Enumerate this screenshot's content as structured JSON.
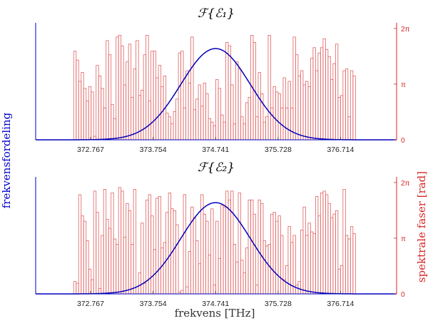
{
  "figure": {
    "ylabel_left": "frekvensfordeling",
    "ylabel_right": "spektrale faser [rad]",
    "xlabel": "frekvens [THz]"
  },
  "colors": {
    "distribution": "#0000bb",
    "phase": "#e06060",
    "axis_right": "#d62728"
  },
  "chart_data": [
    {
      "type": "bar",
      "title": "ℱ{ℰ₁}",
      "x_ticks": [
        "372.767",
        "373.754",
        "374.741",
        "375.728",
        "376.714"
      ],
      "x_tick_values": [
        372.767,
        373.754,
        374.741,
        375.728,
        376.714
      ],
      "xlim": [
        371.9,
        377.6
      ],
      "y_right_ticks": [
        "0",
        "π",
        "2π"
      ],
      "y_right_tick_values": [
        0,
        3.14159,
        6.28318
      ],
      "ylim_right": [
        0,
        6.6
      ],
      "gaussian": {
        "center": 374.741,
        "sigma": 0.55,
        "peak_fraction": 0.78
      },
      "bars": {
        "x_start": 372.5,
        "x_end": 376.95,
        "phases": [
          5.0,
          4.5,
          3.3,
          3.8,
          2.9,
          2.2,
          3.0,
          2.7,
          0.2,
          4.2,
          3.6,
          2.9,
          1.8,
          5.6,
          4.8,
          2.0,
          1.2,
          5.8,
          5.9,
          5.3,
          3.1,
          4.4,
          5.4,
          2.4,
          4.0,
          5.6,
          2.5,
          2.8,
          4.8,
          5.9,
          2.2,
          5.0,
          5.0,
          3.5,
          4.2,
          3.0,
          3.6,
          1.5,
          1.3,
          0.9,
          1.6,
          2.3,
          4.9,
          5.0,
          1.8,
          3.9,
          3.2,
          5.8,
          1.7,
          2.3,
          3.1,
          1.9,
          3.2,
          2.6,
          1.2,
          1.0,
          0.8,
          3.4,
          2.9,
          1.4,
          1.0,
          5.5,
          5.3,
          3.1,
          0.9,
          4.4,
          4.0,
          1.3,
          0.9,
          2.1,
          2.4,
          5.9,
          5.5,
          1.3,
          3.8,
          2.6,
          1.0,
          1.3,
          5.9,
          1.8,
          3.0,
          2.7,
          2.6,
          1.8,
          3.5,
          1.8,
          3.3,
          1.8,
          5.8,
          4.8,
          3.6,
          3.9,
          3.1,
          3.3,
          3.0,
          4.6,
          5.2,
          3.9,
          4.9,
          5.2,
          5.7,
          5.1,
          4.7,
          3.4,
          4.3,
          5.4,
          2.4,
          2.5,
          3.9,
          4.0,
          1.3,
          3.9,
          3.6
        ]
      }
    },
    {
      "type": "bar",
      "title": "ℱ{ℰ₂}",
      "x_ticks": [
        "372.767",
        "373.754",
        "374.741",
        "375.728",
        "376.714"
      ],
      "x_tick_values": [
        372.767,
        373.754,
        374.741,
        375.728,
        376.714
      ],
      "xlim": [
        371.9,
        377.6
      ],
      "y_right_ticks": [
        "0",
        "π",
        "2π"
      ],
      "y_right_tick_values": [
        0,
        3.14159,
        6.28318
      ],
      "ylim_right": [
        0,
        6.6
      ],
      "gaussian": {
        "center": 374.741,
        "sigma": 0.55,
        "peak_fraction": 0.78
      },
      "bars": {
        "x_start": 372.5,
        "x_end": 376.95,
        "phases": [
          0.7,
          0.6,
          5.6,
          4.4,
          4.1,
          3.0,
          1.4,
          0.8,
          5.8,
          4.6,
          0.3,
          3.3,
          5.9,
          4.2,
          3.7,
          5.7,
          3.1,
          2.8,
          6.0,
          5.8,
          3.2,
          5.1,
          4.7,
          2.8,
          5.9,
          0.4,
          1.2,
          4.0,
          0.6,
          5.3,
          5.6,
          4.4,
          2.5,
          5.4,
          5.5,
          2.6,
          2.9,
          4.6,
          5.7,
          4.8,
          4.7,
          3.9,
          0.1,
          0.2,
          5.6,
          0.4,
          2.4,
          4.9,
          4.3,
          3.0,
          1.7,
          5.6,
          4.5,
          4.1,
          2.2,
          4.8,
          0.5,
          4.1,
          2.0,
          5.0,
          4.9,
          5.8,
          5.3,
          5.8,
          2.8,
          1.8,
          5.7,
          1.9,
          1.2,
          2.6,
          5.3,
          5.3,
          4.5,
          0.5,
          5.3,
          5.1,
          3.0,
          2.7,
          2.8,
          4.5,
          4.6,
          4.1,
          4.4,
          3.3,
          0.8,
          1.6,
          3.8,
          2.9,
          3.3,
          0.5,
          0.7,
          3.6,
          4.9,
          3.3,
          4.0,
          3.5,
          3.4,
          5.5,
          4.4,
          5.7,
          5.8,
          5.6,
          5.1,
          4.3,
          4.5,
          4.7,
          1.4,
          1.6,
          5.9,
          3.3,
          3.1,
          3.8,
          3.4
        ]
      }
    }
  ]
}
